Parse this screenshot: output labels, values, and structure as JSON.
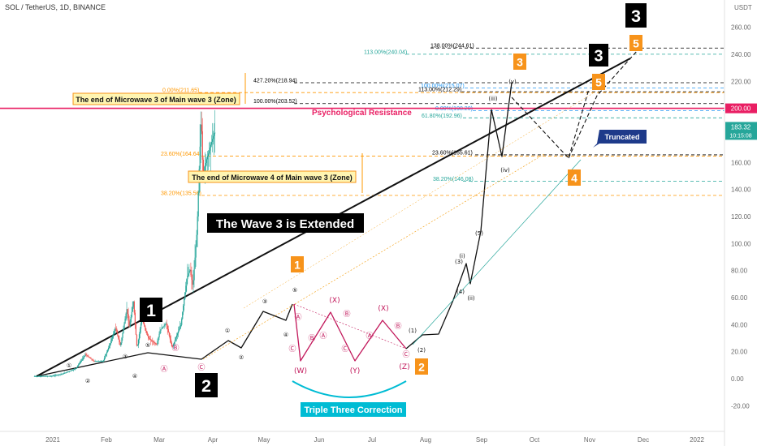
{
  "header": {
    "symbol": "SOL / TetherUS, 1D, BINANCE",
    "currency": "USDT"
  },
  "price_tags": {
    "resistance": "200.00",
    "current": "183.32",
    "countdown": "10:15:08"
  },
  "chart_data": {
    "type": "candlestick",
    "x_ticks": [
      "2021",
      "Feb",
      "Mar",
      "Apr",
      "May",
      "Jun",
      "Jul",
      "Aug",
      "Sep",
      "Oct",
      "Nov",
      "Dec",
      "2022"
    ],
    "y_ticks": [
      "260.00",
      "240.00",
      "220.00",
      "200.00",
      "180.00",
      "160.00",
      "140.00",
      "120.00",
      "100.00",
      "80.00",
      "60.00",
      "40.00",
      "20.00",
      "0.00",
      "-20.00"
    ],
    "ylim": [
      -30,
      270
    ],
    "grid": false,
    "price_path": [
      [
        "2020-12-01",
        1.8
      ],
      [
        "2021-01-01",
        2.0
      ],
      [
        "2021-01-20",
        3.8
      ],
      [
        "2021-02-10",
        7.5
      ],
      [
        "2021-02-26",
        18
      ],
      [
        "2021-03-12",
        13
      ],
      [
        "2021-03-28",
        13
      ],
      [
        "2021-04-08",
        25
      ],
      [
        "2021-04-18",
        38
      ],
      [
        "2021-04-26",
        24
      ],
      [
        "2021-05-07",
        52
      ],
      [
        "2021-05-11",
        38
      ],
      [
        "2021-05-18",
        57
      ],
      [
        "2021-05-24",
        22
      ],
      [
        "2021-06-01",
        45
      ],
      [
        "2021-06-12",
        30
      ],
      [
        "2021-06-26",
        25
      ],
      [
        "2021-07-02",
        36
      ],
      [
        "2021-07-12",
        41
      ],
      [
        "2021-07-22",
        23
      ],
      [
        "2021-07-28",
        30
      ],
      [
        "2021-08-06",
        40
      ],
      [
        "2021-08-16",
        75
      ],
      [
        "2021-08-21",
        81
      ],
      [
        "2021-08-26",
        68
      ],
      [
        "2021-09-02",
        110
      ],
      [
        "2021-09-06",
        160
      ],
      [
        "2021-09-09",
        195
      ],
      [
        "2021-09-12",
        150
      ],
      [
        "2021-09-18",
        162
      ],
      [
        "2021-10-01",
        182
      ]
    ],
    "fib_levels": [
      {
        "label": "138.00%(244.61)",
        "price": 244.61,
        "color": "#000000"
      },
      {
        "label": "113.00%(240.04)",
        "price": 240.04,
        "color": "#26a69a"
      },
      {
        "label": "427.20%(218.94)",
        "price": 218.94,
        "color": "#000000"
      },
      {
        "label": "100.00%(215.07)",
        "price": 215.07,
        "color": "#2196f3"
      },
      {
        "label": "0.00%(211.65)",
        "price": 211.65,
        "color": "#ff9800"
      },
      {
        "label": "113.00%(212.29)",
        "price": 212.29,
        "color": "#000000"
      },
      {
        "label": "100.00%(203.52)",
        "price": 203.52,
        "color": "#000000"
      },
      {
        "label": "0.00%(198.20)",
        "price": 198.2,
        "color": "#2196f3"
      },
      {
        "label": "61.80%(192.96)",
        "price": 192.96,
        "color": "#26a69a"
      },
      {
        "label": "23.60%(165.61)",
        "price": 165.61,
        "color": "#000000"
      },
      {
        "label": "23.60%(164.64)",
        "price": 164.64,
        "color": "#ff9800"
      },
      {
        "label": "38.20%(146.08)",
        "price": 146.08,
        "color": "#26a69a"
      },
      {
        "label": "38.20%(135.56)",
        "price": 135.56,
        "color": "#ff9800"
      }
    ],
    "annotations": {
      "title_box": "The Wave 3 is Extended",
      "psych": "Psychological Resistance",
      "zone3": "The end of Microwave 3 of Main wave 3 (Zone)",
      "zone4": "The end of Microwave 4 of Main wave 3 (Zone)",
      "triple": "Triple Three Correction",
      "truncated": "Truncated"
    },
    "black_labels": [
      "1",
      "2",
      "3",
      "3"
    ],
    "orange_labels": [
      "1",
      "2",
      "3",
      "4",
      "5",
      "5"
    ],
    "small_waves": [
      "①",
      "②",
      "③",
      "④",
      "⑤",
      "(1)",
      "(2)",
      "(3)",
      "(4)",
      "(5)",
      "(i)",
      "(ii)",
      "(iii)",
      "(iv)",
      "(v)"
    ],
    "pink_waves": [
      "(W)",
      "(X)",
      "(Y)",
      "(X)",
      "(Z)",
      "Ⓐ",
      "Ⓑ",
      "Ⓒ"
    ]
  },
  "colors": {
    "up": "#26a69a",
    "down": "#ef5350",
    "resistance": "#e91e63",
    "fib_orange": "#ff9800",
    "label_orange": "#f7931a",
    "cyan": "#00bcd4",
    "navy": "#1e3a8a"
  }
}
